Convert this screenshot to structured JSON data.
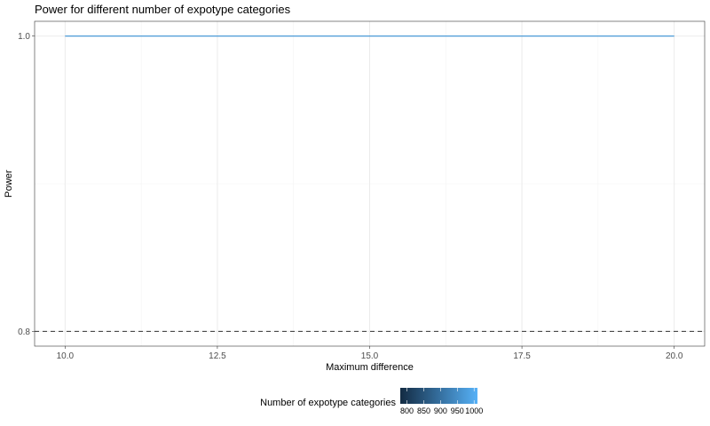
{
  "chart_data": {
    "type": "line",
    "title": "Power for different number of expotype categories",
    "xlabel": "Maximum difference",
    "ylabel": "Power",
    "xlim": [
      9.5,
      20.5
    ],
    "ylim": [
      0.79,
      1.01
    ],
    "x_ticks": [
      10.0,
      12.5,
      15.0,
      17.5,
      20.0
    ],
    "x_tick_labels": [
      "10.0",
      "12.5",
      "15.0",
      "17.5",
      "20.0"
    ],
    "y_ticks": [
      0.8,
      1.0
    ],
    "y_tick_labels": [
      "0.8",
      "1.0"
    ],
    "grid": true,
    "series": [
      {
        "x": [
          10.0,
          20.0
        ],
        "y": [
          1.0,
          1.0
        ],
        "color": "#4a9ad7"
      }
    ],
    "reference_line": {
      "y": 0.8,
      "style": "dashed",
      "color": "#333333"
    },
    "legend": {
      "title": "Number of expotype categories",
      "placement": "bottom",
      "type": "colorbar",
      "range": [
        780,
        1010
      ],
      "ticks": [
        800,
        850,
        900,
        950,
        1000
      ],
      "tick_labels": [
        "800",
        "850",
        "900",
        "950",
        "1000"
      ],
      "low_color": "#132b43",
      "high_color": "#56b1f7"
    }
  }
}
